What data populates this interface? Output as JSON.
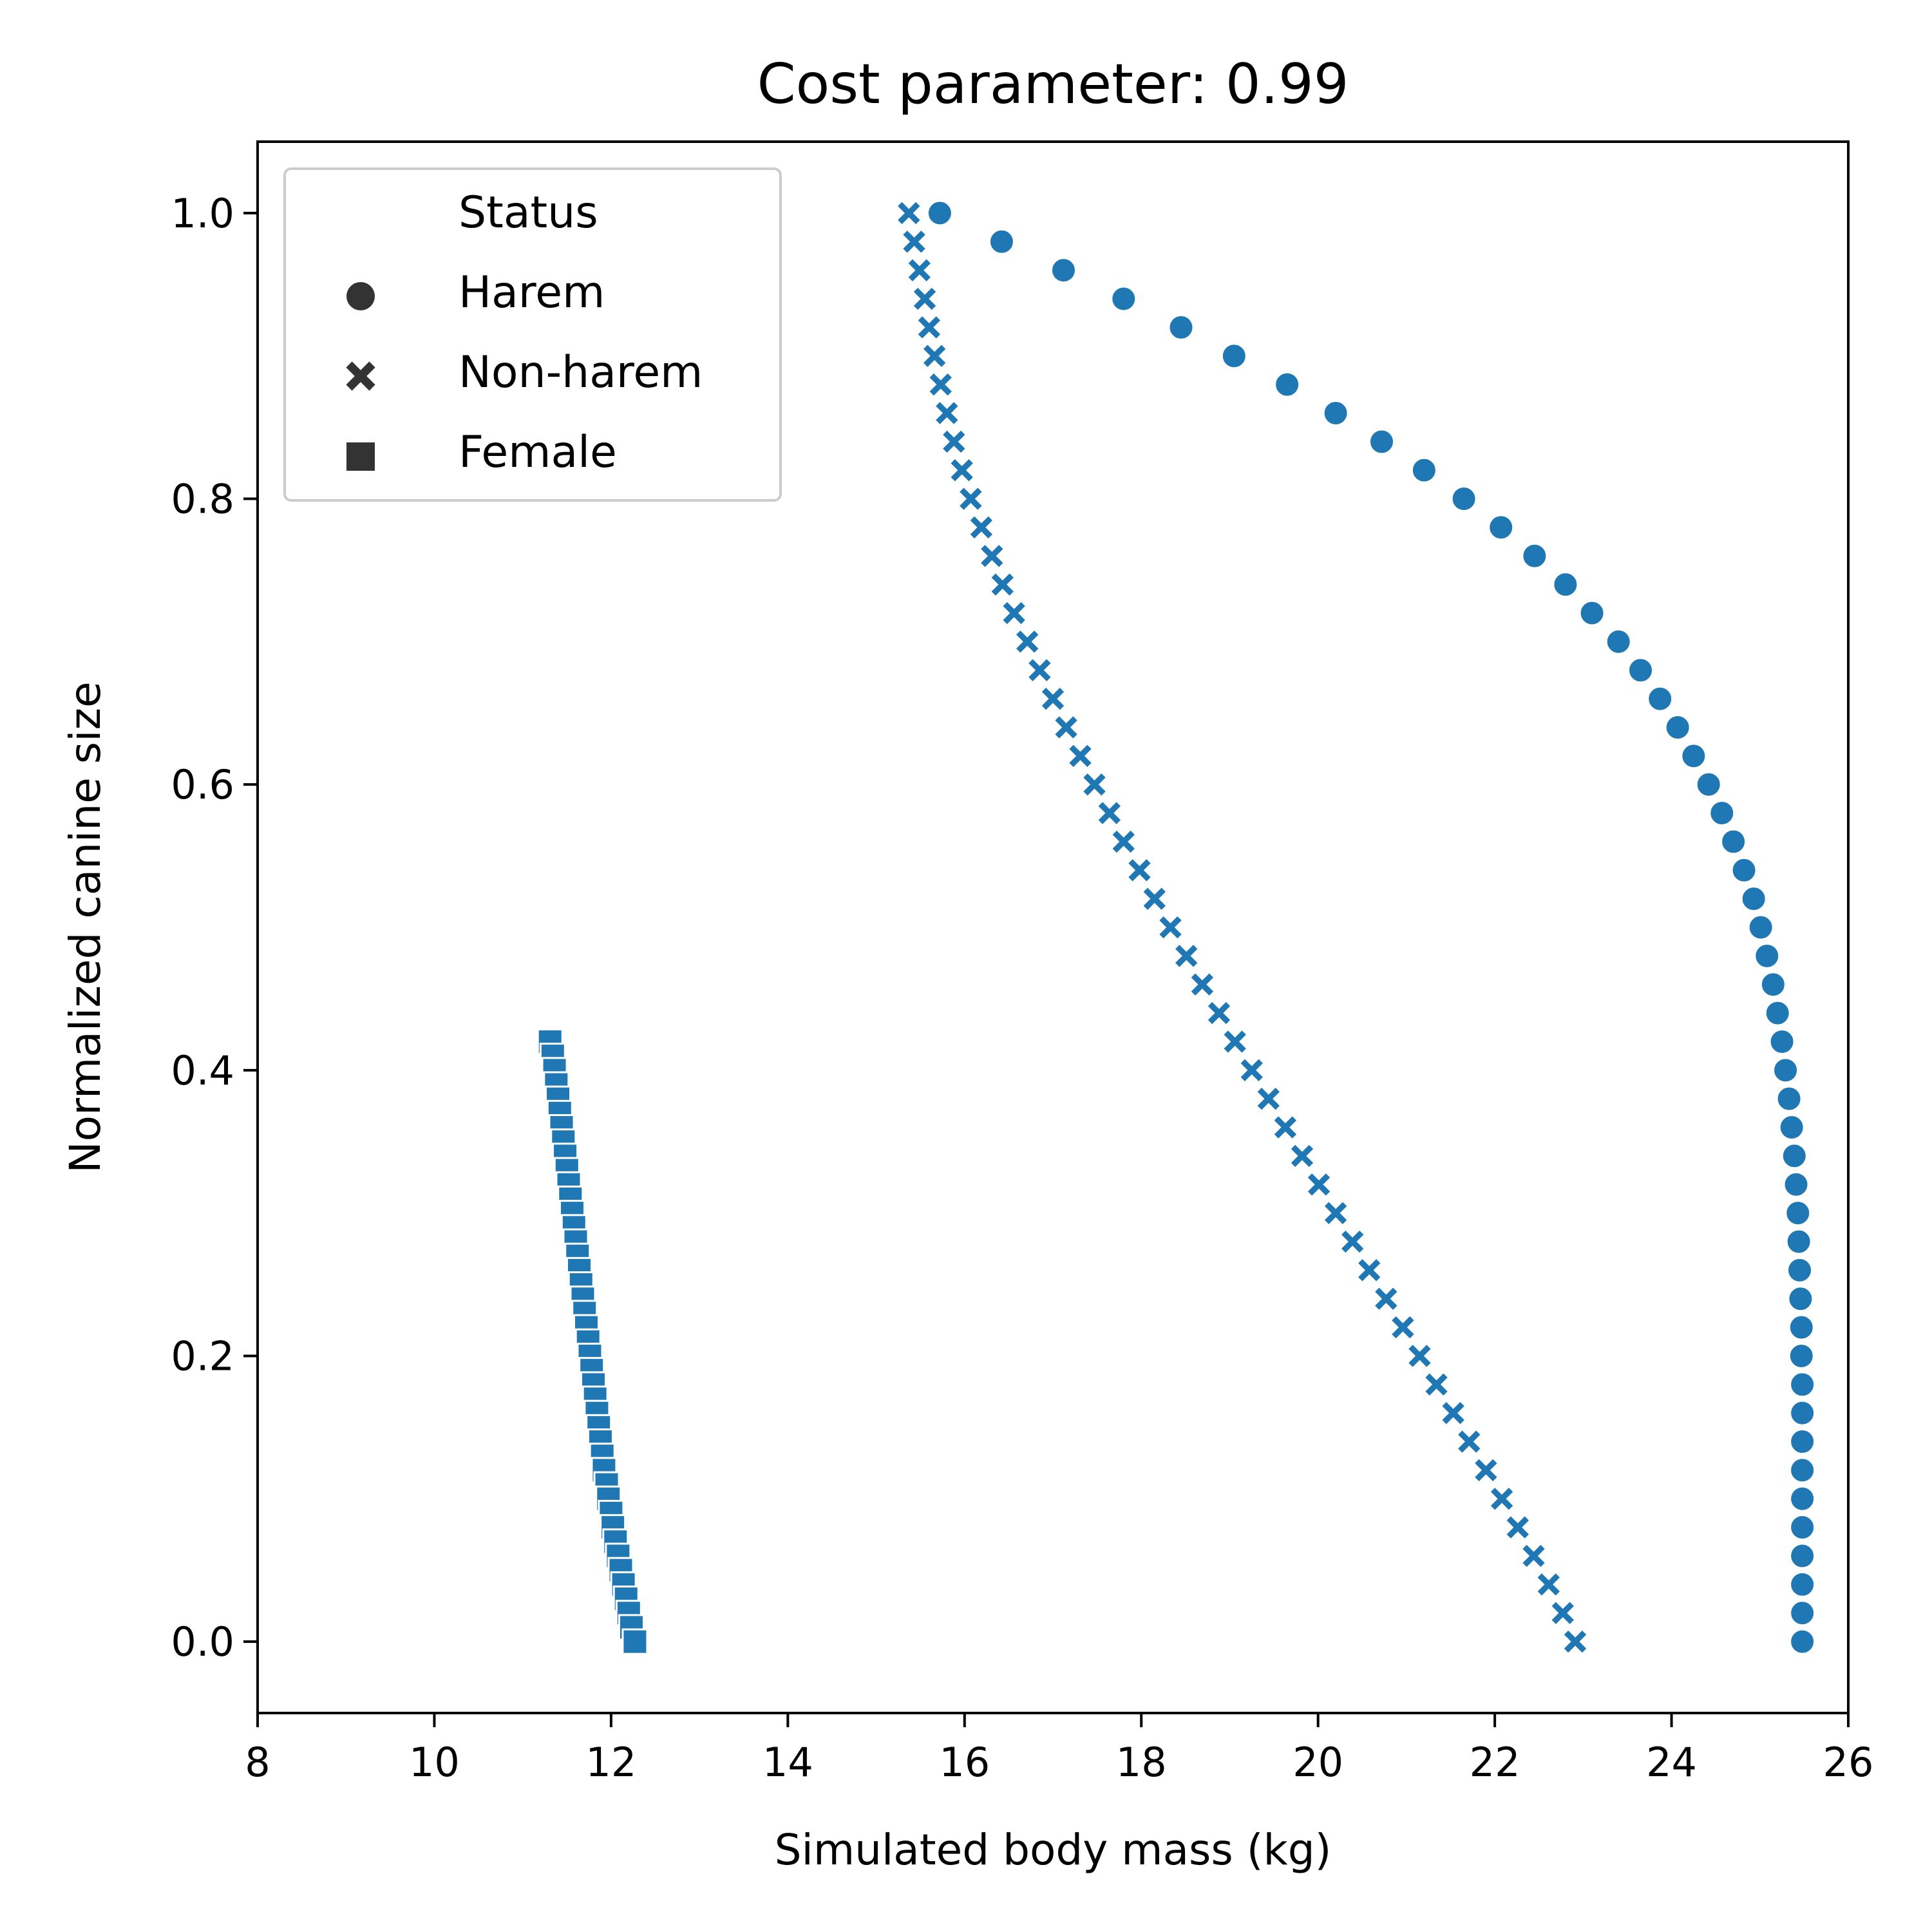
{
  "chart_data": {
    "type": "scatter",
    "title": "Cost parameter: 0.99",
    "xlabel": "Simulated body mass (kg)",
    "ylabel": "Normalized canine size",
    "xlim": [
      8,
      26
    ],
    "ylim": [
      -0.05,
      1.05
    ],
    "xticks": [
      "8",
      "10",
      "12",
      "14",
      "16",
      "18",
      "20",
      "22",
      "24",
      "26"
    ],
    "yticks": [
      "0.0",
      "0.2",
      "0.4",
      "0.6",
      "0.8",
      "1.0"
    ],
    "grid": false,
    "color": "#1f77b4",
    "legend": {
      "title": "Status",
      "placement": "top-left",
      "entries": [
        {
          "label": "Harem",
          "marker": "circle"
        },
        {
          "label": "Non-harem",
          "marker": "x"
        },
        {
          "label": "Female",
          "marker": "square"
        }
      ]
    },
    "series": [
      {
        "name": "Harem",
        "marker": "circle",
        "points": [
          [
            15.72,
            1.0
          ],
          [
            16.42,
            0.98
          ],
          [
            17.12,
            0.96
          ],
          [
            17.8,
            0.94
          ],
          [
            18.45,
            0.92
          ],
          [
            19.05,
            0.9
          ],
          [
            19.65,
            0.88
          ],
          [
            20.2,
            0.86
          ],
          [
            20.72,
            0.84
          ],
          [
            21.2,
            0.82
          ],
          [
            21.65,
            0.8
          ],
          [
            22.07,
            0.78
          ],
          [
            22.45,
            0.76
          ],
          [
            22.8,
            0.74
          ],
          [
            23.1,
            0.72
          ],
          [
            23.4,
            0.7
          ],
          [
            23.65,
            0.68
          ],
          [
            23.87,
            0.66
          ],
          [
            24.07,
            0.64
          ],
          [
            24.25,
            0.62
          ],
          [
            24.42,
            0.6
          ],
          [
            24.57,
            0.58
          ],
          [
            24.7,
            0.56
          ],
          [
            24.82,
            0.54
          ],
          [
            24.93,
            0.52
          ],
          [
            25.01,
            0.5
          ],
          [
            25.08,
            0.48
          ],
          [
            25.15,
            0.46
          ],
          [
            25.2,
            0.44
          ],
          [
            25.25,
            0.42
          ],
          [
            25.29,
            0.4
          ],
          [
            25.33,
            0.38
          ],
          [
            25.36,
            0.36
          ],
          [
            25.39,
            0.34
          ],
          [
            25.41,
            0.32
          ],
          [
            25.43,
            0.3
          ],
          [
            25.44,
            0.28
          ],
          [
            25.45,
            0.26
          ],
          [
            25.46,
            0.24
          ],
          [
            25.47,
            0.22
          ],
          [
            25.47,
            0.2
          ],
          [
            25.48,
            0.18
          ],
          [
            25.48,
            0.16
          ],
          [
            25.48,
            0.14
          ],
          [
            25.48,
            0.12
          ],
          [
            25.48,
            0.1
          ],
          [
            25.48,
            0.08
          ],
          [
            25.48,
            0.06
          ],
          [
            25.48,
            0.04
          ],
          [
            25.48,
            0.02
          ],
          [
            25.48,
            0.0
          ]
        ]
      },
      {
        "name": "Non-harem",
        "marker": "x",
        "points": [
          [
            15.37,
            1.0
          ],
          [
            15.43,
            0.98
          ],
          [
            15.49,
            0.96
          ],
          [
            15.55,
            0.94
          ],
          [
            15.6,
            0.92
          ],
          [
            15.66,
            0.9
          ],
          [
            15.73,
            0.88
          ],
          [
            15.8,
            0.86
          ],
          [
            15.88,
            0.84
          ],
          [
            15.97,
            0.82
          ],
          [
            16.07,
            0.8
          ],
          [
            16.19,
            0.78
          ],
          [
            16.31,
            0.76
          ],
          [
            16.43,
            0.74
          ],
          [
            16.56,
            0.72
          ],
          [
            16.71,
            0.7
          ],
          [
            16.85,
            0.68
          ],
          [
            17.0,
            0.66
          ],
          [
            17.15,
            0.64
          ],
          [
            17.31,
            0.62
          ],
          [
            17.47,
            0.6
          ],
          [
            17.64,
            0.58
          ],
          [
            17.8,
            0.56
          ],
          [
            17.98,
            0.54
          ],
          [
            18.15,
            0.52
          ],
          [
            18.33,
            0.5
          ],
          [
            18.51,
            0.48
          ],
          [
            18.69,
            0.46
          ],
          [
            18.88,
            0.44
          ],
          [
            19.06,
            0.42
          ],
          [
            19.25,
            0.4
          ],
          [
            19.44,
            0.38
          ],
          [
            19.63,
            0.36
          ],
          [
            19.82,
            0.34
          ],
          [
            20.01,
            0.32
          ],
          [
            20.2,
            0.3
          ],
          [
            20.39,
            0.28
          ],
          [
            20.58,
            0.26
          ],
          [
            20.77,
            0.24
          ],
          [
            20.96,
            0.22
          ],
          [
            21.15,
            0.2
          ],
          [
            21.34,
            0.18
          ],
          [
            21.53,
            0.16
          ],
          [
            21.71,
            0.14
          ],
          [
            21.9,
            0.12
          ],
          [
            22.08,
            0.1
          ],
          [
            22.26,
            0.08
          ],
          [
            22.44,
            0.06
          ],
          [
            22.61,
            0.04
          ],
          [
            22.77,
            0.02
          ],
          [
            22.91,
            0.0
          ]
        ]
      },
      {
        "name": "Female",
        "marker": "square",
        "points": [
          [
            11.31,
            0.42
          ],
          [
            11.34,
            0.41
          ],
          [
            11.36,
            0.4
          ],
          [
            11.38,
            0.39
          ],
          [
            11.4,
            0.38
          ],
          [
            11.42,
            0.37
          ],
          [
            11.44,
            0.36
          ],
          [
            11.46,
            0.35
          ],
          [
            11.48,
            0.34
          ],
          [
            11.5,
            0.33
          ],
          [
            11.52,
            0.32
          ],
          [
            11.54,
            0.31
          ],
          [
            11.56,
            0.3
          ],
          [
            11.58,
            0.29
          ],
          [
            11.6,
            0.28
          ],
          [
            11.62,
            0.27
          ],
          [
            11.64,
            0.26
          ],
          [
            11.66,
            0.25
          ],
          [
            11.68,
            0.24
          ],
          [
            11.7,
            0.23
          ],
          [
            11.72,
            0.22
          ],
          [
            11.74,
            0.21
          ],
          [
            11.76,
            0.2
          ],
          [
            11.78,
            0.19
          ],
          [
            11.8,
            0.18
          ],
          [
            11.82,
            0.17
          ],
          [
            11.84,
            0.16
          ],
          [
            11.86,
            0.15
          ],
          [
            11.88,
            0.14
          ],
          [
            11.9,
            0.13
          ],
          [
            11.92,
            0.12
          ],
          [
            11.95,
            0.11
          ],
          [
            11.97,
            0.1
          ],
          [
            12.0,
            0.09
          ],
          [
            12.02,
            0.08
          ],
          [
            12.05,
            0.07
          ],
          [
            12.08,
            0.06
          ],
          [
            12.11,
            0.05
          ],
          [
            12.14,
            0.04
          ],
          [
            12.17,
            0.03
          ],
          [
            12.2,
            0.02
          ],
          [
            12.23,
            0.01
          ],
          [
            12.27,
            0.0
          ]
        ]
      }
    ]
  }
}
